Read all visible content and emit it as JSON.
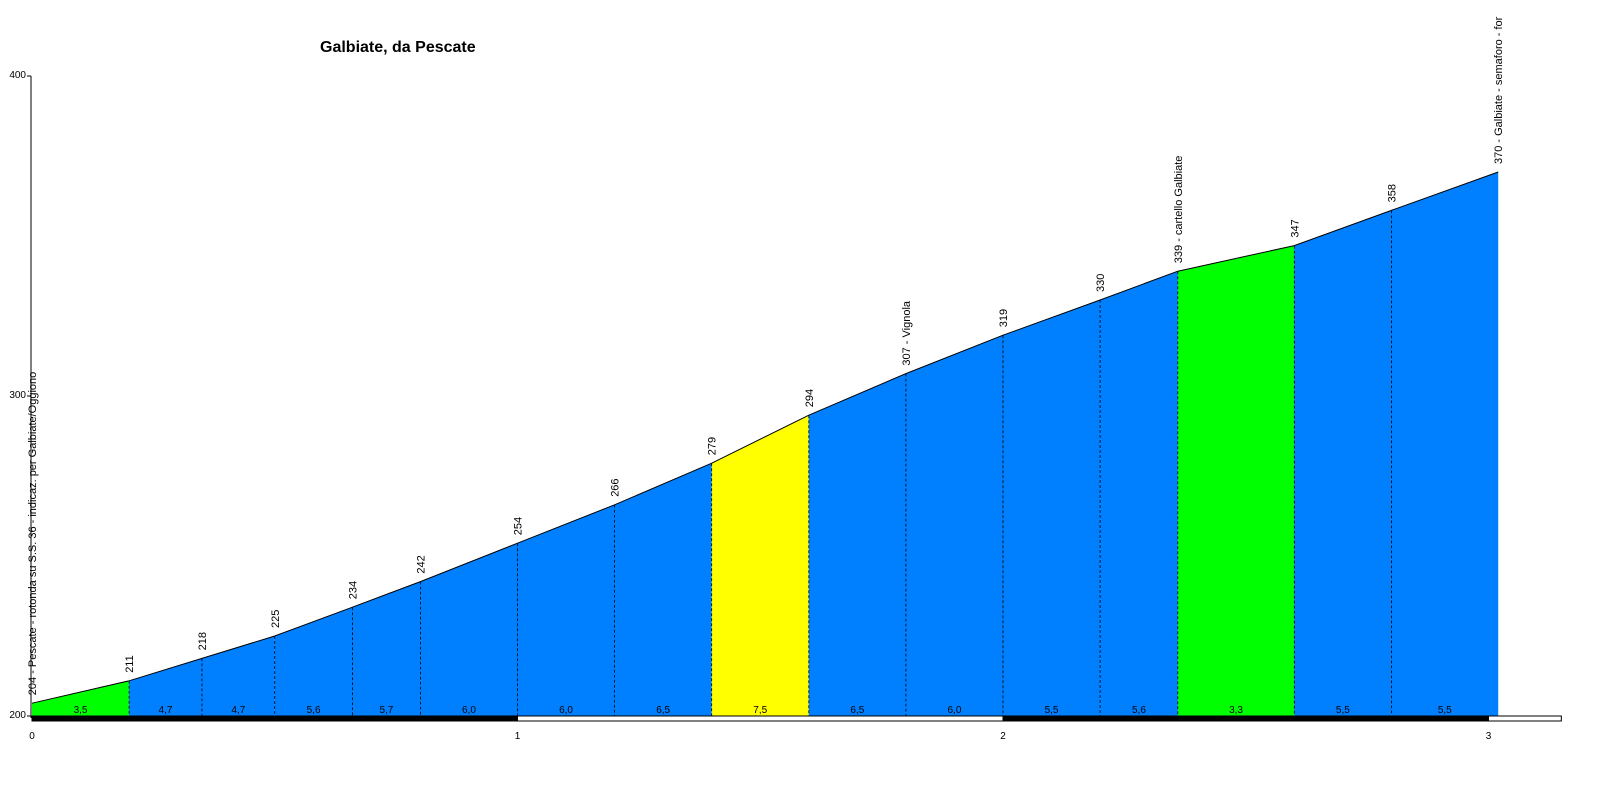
{
  "chart_data": {
    "type": "area",
    "title": "Galbiate, da Pescate",
    "xlabel": "",
    "ylabel": "",
    "xlim": [
      0,
      3.15
    ],
    "ylim": [
      200,
      400
    ],
    "x_ticks": [
      "0",
      "1",
      "2",
      "3"
    ],
    "y_ticks": [
      "200",
      "300",
      "400"
    ],
    "grid": false,
    "legend": "none",
    "points": [
      {
        "x": 0.0,
        "y": 204,
        "label": "204 - Pescate - rotonda su S.S. 36 - indicaz. per Galbiate/Oggiono"
      },
      {
        "x": 0.2,
        "y": 211,
        "label": "211"
      },
      {
        "x": 0.35,
        "y": 218,
        "label": "218"
      },
      {
        "x": 0.5,
        "y": 225,
        "label": "225"
      },
      {
        "x": 0.66,
        "y": 234,
        "label": "234"
      },
      {
        "x": 0.8,
        "y": 242,
        "label": "242"
      },
      {
        "x": 1.0,
        "y": 254,
        "label": "254"
      },
      {
        "x": 1.2,
        "y": 266,
        "label": "266"
      },
      {
        "x": 1.4,
        "y": 279,
        "label": "279"
      },
      {
        "x": 1.6,
        "y": 294,
        "label": "294"
      },
      {
        "x": 1.8,
        "y": 307,
        "label": "307 - Vignola"
      },
      {
        "x": 2.0,
        "y": 319,
        "label": "319"
      },
      {
        "x": 2.2,
        "y": 330,
        "label": "330"
      },
      {
        "x": 2.36,
        "y": 339,
        "label": "339 - cartello Galbiate"
      },
      {
        "x": 2.6,
        "y": 347,
        "label": "347"
      },
      {
        "x": 2.8,
        "y": 358,
        "label": "358"
      },
      {
        "x": 3.02,
        "y": 370,
        "label": "370 - Galbiate - semaforo - for"
      }
    ],
    "segments": [
      {
        "gradient": "3,5",
        "color": "#00ff00"
      },
      {
        "gradient": "4,7",
        "color": "#0080ff"
      },
      {
        "gradient": "4,7",
        "color": "#0080ff"
      },
      {
        "gradient": "5,6",
        "color": "#0080ff"
      },
      {
        "gradient": "5,7",
        "color": "#0080ff"
      },
      {
        "gradient": "6,0",
        "color": "#0080ff"
      },
      {
        "gradient": "6,0",
        "color": "#0080ff"
      },
      {
        "gradient": "6,5",
        "color": "#0080ff"
      },
      {
        "gradient": "7,5",
        "color": "#ffff00"
      },
      {
        "gradient": "6,5",
        "color": "#0080ff"
      },
      {
        "gradient": "6,0",
        "color": "#0080ff"
      },
      {
        "gradient": "5,5",
        "color": "#0080ff"
      },
      {
        "gradient": "5,6",
        "color": "#0080ff"
      },
      {
        "gradient": "3,3",
        "color": "#00ff00"
      },
      {
        "gradient": "5,5",
        "color": "#0080ff"
      },
      {
        "gradient": "5,5",
        "color": "#0080ff"
      }
    ]
  }
}
